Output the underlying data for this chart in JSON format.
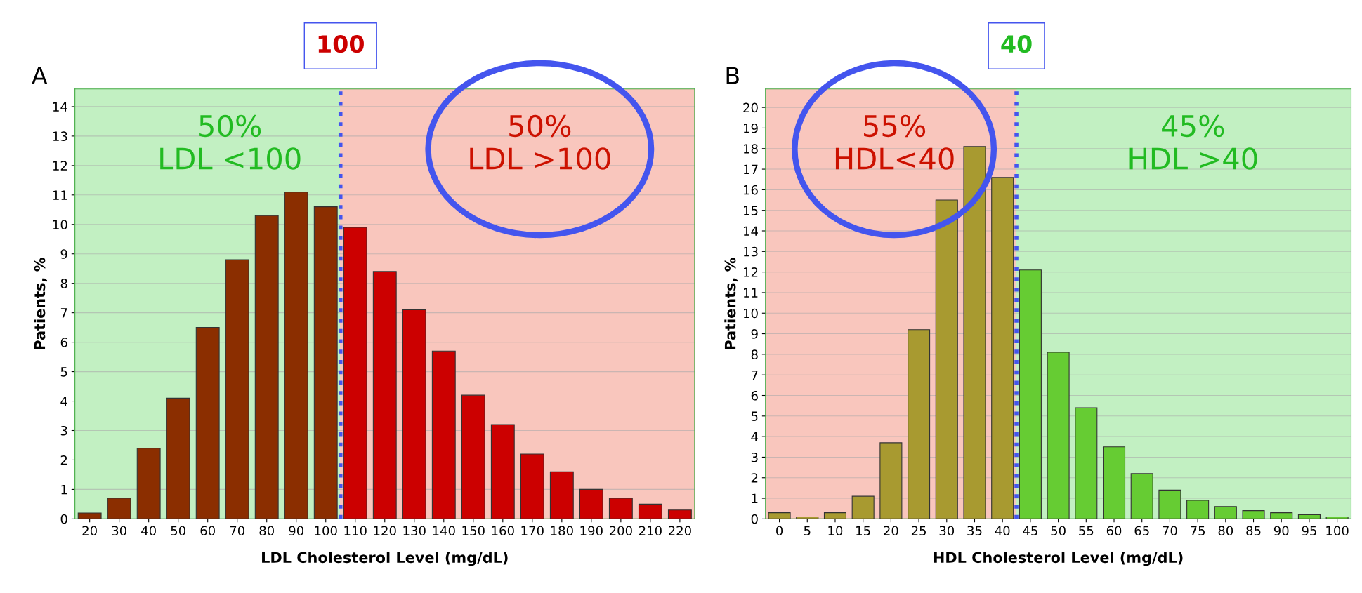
{
  "chart_data": [
    {
      "type": "bar",
      "title": "A",
      "xlabel": "LDL Cholesterol Level (mg/dL)",
      "ylabel": "Patients, %",
      "categories": [
        "20",
        "30",
        "40",
        "50",
        "60",
        "70",
        "80",
        "90",
        "100",
        "110",
        "120",
        "130",
        "140",
        "150",
        "160",
        "170",
        "180",
        "190",
        "200",
        "210",
        "220"
      ],
      "values": [
        0.2,
        0.7,
        2.4,
        4.1,
        6.5,
        8.8,
        10.3,
        11.1,
        10.6,
        9.9,
        8.4,
        7.1,
        5.7,
        4.2,
        3.2,
        2.2,
        1.6,
        1.0,
        0.7,
        0.5,
        0.3
      ],
      "colors": [
        "#8b2e00",
        "#8b2e00",
        "#8b2e00",
        "#8b2e00",
        "#8b2e00",
        "#8b2e00",
        "#8b2e00",
        "#8b2e00",
        "#8b2e00",
        "#cc0000",
        "#cc0000",
        "#cc0000",
        "#cc0000",
        "#cc0000",
        "#cc0000",
        "#cc0000",
        "#cc0000",
        "#cc0000",
        "#cc0000",
        "#cc0000",
        "#cc0000"
      ],
      "ylim": [
        0,
        14.6
      ],
      "yticks": [
        0,
        1,
        2,
        3,
        4,
        5,
        6,
        7,
        8,
        9,
        10,
        11,
        12,
        13,
        14
      ],
      "grid": "y",
      "bands": [
        {
          "axis": "x",
          "from": "20",
          "to": "100",
          "color": "#c2f0c2"
        },
        {
          "axis": "x",
          "from": "110",
          "to": "220",
          "color": "#f9c6bd"
        }
      ],
      "ref_lines": [
        {
          "axis": "x",
          "value": "100",
          "label": "100",
          "color": "#4455ee",
          "line_style": "dotted"
        }
      ],
      "annotations": [
        "50%\nLDL <100",
        "50%\nLDL >100"
      ]
    },
    {
      "type": "bar",
      "title": "B",
      "xlabel": "HDL Cholesterol Level (mg/dL)",
      "ylabel": "Patients, %",
      "categories": [
        "0",
        "5",
        "10",
        "15",
        "20",
        "25",
        "30",
        "35",
        "40",
        "45",
        "50",
        "55",
        "60",
        "65",
        "70",
        "75",
        "80",
        "85",
        "90",
        "95",
        "100"
      ],
      "values": [
        0.3,
        0.1,
        0.3,
        1.1,
        3.7,
        9.2,
        15.5,
        18.1,
        16.6,
        12.1,
        8.1,
        5.4,
        3.5,
        2.2,
        1.4,
        0.9,
        0.6,
        0.4,
        0.3,
        0.2,
        0.1
      ],
      "colors": [
        "#a89a30",
        "#a89a30",
        "#a89a30",
        "#a89a30",
        "#a89a30",
        "#a89a30",
        "#a89a30",
        "#a89a30",
        "#a89a30",
        "#66cc33",
        "#66cc33",
        "#66cc33",
        "#66cc33",
        "#66cc33",
        "#66cc33",
        "#66cc33",
        "#66cc33",
        "#66cc33",
        "#66cc33",
        "#66cc33",
        "#66cc33"
      ],
      "ylim": [
        0,
        20.9
      ],
      "yticks": [
        0,
        1,
        2,
        3,
        4,
        5,
        6,
        7,
        8,
        9,
        10,
        11,
        12,
        13,
        14,
        15,
        16,
        17,
        18,
        19,
        20
      ],
      "grid": "y",
      "bands": [
        {
          "axis": "x",
          "from": "0",
          "to": "40",
          "color": "#f9c6bd"
        },
        {
          "axis": "x",
          "from": "45",
          "to": "100",
          "color": "#c2f0c2"
        }
      ],
      "ref_lines": [
        {
          "axis": "x",
          "value": "40",
          "label": "40",
          "color": "#4455ee",
          "line_style": "dotted"
        }
      ],
      "annotations": [
        "55%\nHDL<40",
        "45%\nHDL >40"
      ]
    }
  ]
}
